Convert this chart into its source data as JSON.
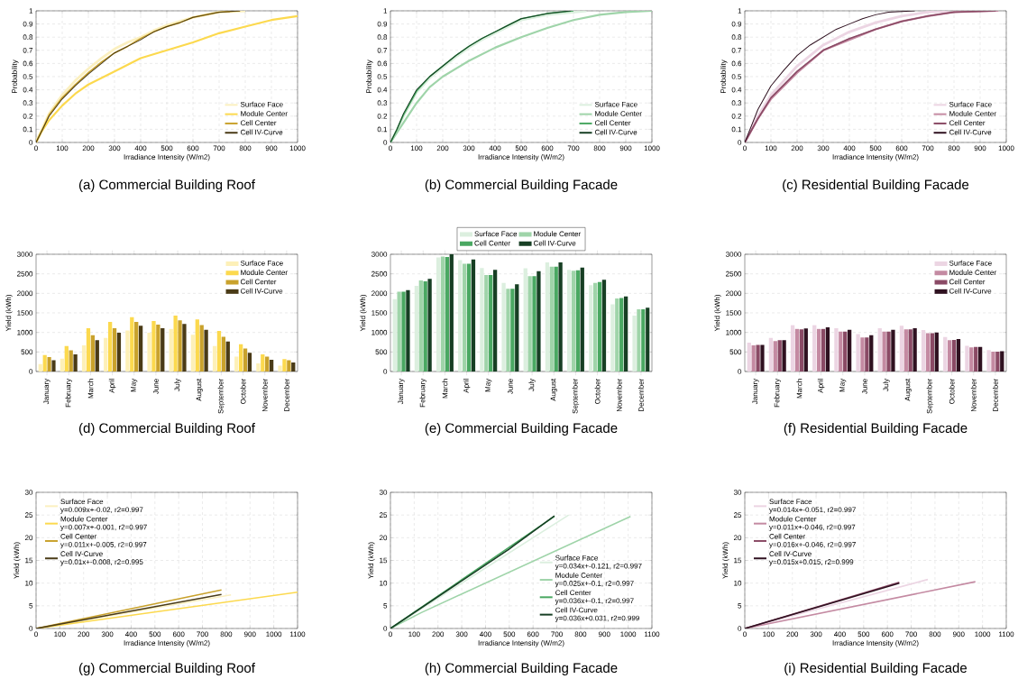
{
  "chart_data": [
    {
      "type": "line",
      "title": "(a) Commercial Building Roof",
      "xlabel": "Irradiance Intensity (W/m2)",
      "ylabel": "Probability",
      "xlim": [
        0,
        1000
      ],
      "ylim": [
        0,
        1
      ],
      "xticks": [
        0,
        100,
        200,
        300,
        400,
        500,
        600,
        700,
        800,
        900,
        1000
      ],
      "yticks": [
        0,
        0.1,
        0.2,
        0.3,
        0.4,
        0.5,
        0.6,
        0.7,
        0.8,
        0.9,
        1
      ],
      "grid": true,
      "legend": "bottom right",
      "series": [
        {
          "name": "Surface Face",
          "color": "#fbf0c0",
          "x": [
            0,
            20,
            50,
            100,
            150,
            200,
            250,
            300,
            350,
            400,
            450,
            500,
            550,
            600,
            650,
            700,
            800
          ],
          "values": [
            0,
            0.09,
            0.22,
            0.36,
            0.47,
            0.56,
            0.64,
            0.71,
            0.76,
            0.8,
            0.85,
            0.89,
            0.92,
            0.95,
            0.97,
            0.99,
            1
          ]
        },
        {
          "name": "Module Center",
          "color": "#fcd94e",
          "x": [
            0,
            20,
            50,
            100,
            150,
            200,
            300,
            400,
            500,
            600,
            700,
            800,
            900,
            1000
          ],
          "values": [
            0,
            0.08,
            0.17,
            0.28,
            0.37,
            0.44,
            0.54,
            0.64,
            0.7,
            0.76,
            0.83,
            0.88,
            0.93,
            0.96
          ]
        },
        {
          "name": "Cell Center",
          "color": "#c9a22c",
          "x": [
            0,
            20,
            50,
            100,
            150,
            200,
            250,
            300,
            350,
            400,
            450,
            500,
            550,
            600,
            650,
            700,
            780
          ],
          "values": [
            0,
            0.08,
            0.21,
            0.34,
            0.44,
            0.53,
            0.61,
            0.68,
            0.73,
            0.79,
            0.84,
            0.88,
            0.91,
            0.95,
            0.97,
            0.99,
            1
          ]
        },
        {
          "name": "Cell IV-Curve",
          "color": "#4a3b17",
          "x": [
            0,
            20,
            50,
            100,
            150,
            200,
            250,
            300,
            350,
            400,
            450,
            500,
            550,
            600,
            650,
            700,
            780
          ],
          "values": [
            0,
            0.08,
            0.2,
            0.33,
            0.43,
            0.52,
            0.6,
            0.68,
            0.73,
            0.78,
            0.84,
            0.88,
            0.91,
            0.95,
            0.97,
            0.99,
            1
          ]
        }
      ]
    },
    {
      "type": "line",
      "title": "(b) Commercial Building Facade",
      "xlabel": "Irradiance Intensity (W/m2)",
      "ylabel": "Probability",
      "xlim": [
        0,
        1000
      ],
      "ylim": [
        0,
        1
      ],
      "xticks": [
        0,
        100,
        200,
        300,
        400,
        500,
        600,
        700,
        800,
        900,
        1000
      ],
      "yticks": [
        0,
        0.1,
        0.2,
        0.3,
        0.4,
        0.5,
        0.6,
        0.7,
        0.8,
        0.9,
        1
      ],
      "grid": true,
      "legend": "bottom right",
      "series": [
        {
          "name": "Surface Face",
          "color": "#dcefdf",
          "x": [
            0,
            25,
            50,
            100,
            150,
            200,
            250,
            300,
            350,
            400,
            450,
            500,
            600,
            750
          ],
          "values": [
            0,
            0.09,
            0.2,
            0.38,
            0.49,
            0.57,
            0.65,
            0.72,
            0.78,
            0.83,
            0.88,
            0.93,
            0.97,
            1
          ]
        },
        {
          "name": "Module Center",
          "color": "#9fd4a9",
          "x": [
            0,
            50,
            100,
            150,
            200,
            300,
            400,
            500,
            600,
            700,
            800,
            900,
            1000
          ],
          "values": [
            0,
            0.15,
            0.3,
            0.42,
            0.5,
            0.62,
            0.72,
            0.8,
            0.87,
            0.93,
            0.97,
            0.99,
            1
          ]
        },
        {
          "name": "Cell Center",
          "color": "#4aa862",
          "x": [
            0,
            25,
            50,
            100,
            150,
            200,
            250,
            300,
            350,
            400,
            450,
            500,
            600,
            700
          ],
          "values": [
            0,
            0.1,
            0.21,
            0.39,
            0.5,
            0.58,
            0.66,
            0.73,
            0.79,
            0.84,
            0.89,
            0.94,
            0.98,
            1
          ]
        },
        {
          "name": "Cell IV-Curve",
          "color": "#173f24",
          "x": [
            0,
            25,
            50,
            100,
            150,
            200,
            250,
            300,
            350,
            400,
            450,
            500,
            600,
            690
          ],
          "values": [
            0,
            0.1,
            0.22,
            0.4,
            0.5,
            0.58,
            0.66,
            0.73,
            0.79,
            0.84,
            0.89,
            0.94,
            0.98,
            1
          ]
        }
      ]
    },
    {
      "type": "line",
      "title": "(c) Residential Building Facade",
      "xlabel": "Irradiance Intensity (W/m2)",
      "ylabel": "Probability",
      "xlim": [
        0,
        1000
      ],
      "ylim": [
        0,
        1
      ],
      "xticks": [
        0,
        100,
        200,
        300,
        400,
        500,
        600,
        700,
        800,
        900,
        1000
      ],
      "yticks": [
        0,
        0.1,
        0.2,
        0.3,
        0.4,
        0.5,
        0.6,
        0.7,
        0.8,
        0.9,
        1
      ],
      "grid": true,
      "legend": "bottom right",
      "series": [
        {
          "name": "Surface Face",
          "color": "#ecd5e3",
          "x": [
            0,
            50,
            100,
            200,
            300,
            400,
            500,
            600,
            700,
            780
          ],
          "values": [
            0,
            0.2,
            0.36,
            0.58,
            0.74,
            0.84,
            0.91,
            0.96,
            0.99,
            1
          ]
        },
        {
          "name": "Module Center",
          "color": "#c48aa2",
          "x": [
            0,
            50,
            100,
            200,
            300,
            400,
            500,
            600,
            700,
            800,
            970
          ],
          "values": [
            0,
            0.18,
            0.33,
            0.53,
            0.7,
            0.78,
            0.86,
            0.92,
            0.96,
            0.99,
            1
          ]
        },
        {
          "name": "Cell Center",
          "color": "#8a4a65",
          "x": [
            0,
            50,
            100,
            200,
            300,
            400,
            500,
            600,
            700,
            800,
            960
          ],
          "values": [
            0,
            0.18,
            0.34,
            0.54,
            0.7,
            0.79,
            0.86,
            0.92,
            0.96,
            0.99,
            1
          ]
        },
        {
          "name": "Cell IV-Curve",
          "color": "#2f1120",
          "x": [
            0,
            50,
            100,
            150,
            200,
            250,
            300,
            350,
            400,
            450,
            500,
            550,
            650
          ],
          "values": [
            0,
            0.25,
            0.43,
            0.55,
            0.66,
            0.74,
            0.8,
            0.86,
            0.9,
            0.94,
            0.97,
            0.99,
            1
          ]
        }
      ]
    },
    {
      "type": "bar",
      "title": "(d) Commercial Building Roof",
      "ylabel": "Yield (kWh)",
      "categories": [
        "January",
        "February",
        "March",
        "April",
        "May",
        "June",
        "July",
        "August",
        "September",
        "October",
        "November",
        "December"
      ],
      "ylim": [
        0,
        3000
      ],
      "yticks": [
        0,
        500,
        1000,
        1500,
        2000,
        2500,
        3000
      ],
      "grid": "y",
      "legend": "top right",
      "series": [
        {
          "name": "Surface Face",
          "color": "#fdf0b8",
          "values": [
            190,
            330,
            670,
            860,
            1050,
            990,
            1090,
            940,
            650,
            380,
            210,
            150
          ]
        },
        {
          "name": "Module Center",
          "color": "#fcd94e",
          "values": [
            420,
            650,
            1110,
            1270,
            1390,
            1290,
            1430,
            1330,
            1040,
            700,
            440,
            320
          ]
        },
        {
          "name": "Cell Center",
          "color": "#c9a22c",
          "values": [
            370,
            540,
            930,
            1110,
            1270,
            1200,
            1310,
            1190,
            890,
            590,
            380,
            290
          ]
        },
        {
          "name": "Cell IV-Curve",
          "color": "#4a3b17",
          "values": [
            290,
            440,
            800,
            990,
            1170,
            1110,
            1220,
            1070,
            770,
            480,
            300,
            230
          ]
        }
      ]
    },
    {
      "type": "bar",
      "title": "(e) Commercial Building Facade",
      "ylabel": "Yield (kWh)",
      "categories": [
        "January",
        "February",
        "March",
        "April",
        "May",
        "June",
        "July",
        "August",
        "September",
        "October",
        "November",
        "December"
      ],
      "ylim": [
        0,
        3000
      ],
      "yticks": [
        0,
        500,
        1000,
        1500,
        2000,
        2500,
        3000
      ],
      "grid": "y",
      "legend": "top",
      "series": [
        {
          "name": "Surface Face",
          "color": "#dcefdf",
          "values": [
            1850,
            2190,
            2920,
            2850,
            2650,
            2270,
            2640,
            2790,
            2600,
            2210,
            1720,
            1430
          ]
        },
        {
          "name": "Module Center",
          "color": "#9fd4a9",
          "values": [
            2040,
            2330,
            2940,
            2760,
            2470,
            2120,
            2440,
            2680,
            2580,
            2270,
            1870,
            1590
          ]
        },
        {
          "name": "Cell Center",
          "color": "#4aa862",
          "values": [
            2040,
            2310,
            2930,
            2760,
            2470,
            2120,
            2440,
            2680,
            2590,
            2290,
            1880,
            1590
          ]
        },
        {
          "name": "Cell IV-Curve",
          "color": "#173f24",
          "values": [
            2080,
            2370,
            3000,
            2870,
            2600,
            2230,
            2570,
            2790,
            2660,
            2350,
            1920,
            1630
          ]
        }
      ]
    },
    {
      "type": "bar",
      "title": "(f) Residential Building Facade",
      "ylabel": "Yield (kWh)",
      "categories": [
        "January",
        "February",
        "March",
        "April",
        "May",
        "June",
        "July",
        "August",
        "September",
        "October",
        "November",
        "December"
      ],
      "ylim": [
        0,
        3000
      ],
      "yticks": [
        0,
        500,
        1000,
        1500,
        2000,
        2500,
        3000
      ],
      "grid": "y",
      "legend": "top right",
      "series": [
        {
          "name": "Surface Face",
          "color": "#ecd5e3",
          "values": [
            740,
            860,
            1190,
            1190,
            1110,
            960,
            1110,
            1170,
            1060,
            880,
            660,
            550
          ]
        },
        {
          "name": "Module Center",
          "color": "#c48aa2",
          "values": [
            670,
            780,
            1090,
            1090,
            1020,
            870,
            1020,
            1080,
            980,
            800,
            620,
            510
          ]
        },
        {
          "name": "Cell Center",
          "color": "#8a4a65",
          "values": [
            680,
            800,
            1080,
            1090,
            1020,
            870,
            1020,
            1080,
            980,
            810,
            630,
            510
          ]
        },
        {
          "name": "Cell IV-Curve",
          "color": "#2f1120",
          "values": [
            680,
            800,
            1100,
            1130,
            1070,
            930,
            1070,
            1110,
            1000,
            830,
            630,
            520
          ]
        }
      ]
    },
    {
      "type": "line",
      "title": "(g) Commercial Building Roof",
      "xlabel": "Irradiance Intensity (W/m2)",
      "ylabel": "Yield (kWh)",
      "xlim": [
        0,
        1100
      ],
      "ylim": [
        0,
        30
      ],
      "xticks": [
        0,
        100,
        200,
        300,
        400,
        500,
        600,
        700,
        800,
        900,
        1000,
        1100
      ],
      "yticks": [
        0,
        5,
        10,
        15,
        20,
        25,
        30
      ],
      "grid": true,
      "legend": "top left",
      "annotations": [
        "y=0.009x+-0.02, r2=0.997",
        "y=0.007x+-0.001, r2=0.997",
        "y=0.011x+-0.005, r2=0.997",
        "y=0.01x+-0.008, r2=0.995"
      ],
      "series": [
        {
          "name": "Surface Face",
          "color": "#fbf0c0",
          "x": [
            0,
            820
          ],
          "values": [
            0,
            7.4
          ]
        },
        {
          "name": "Module Center",
          "color": "#fcd94e",
          "x": [
            0,
            1100
          ],
          "values": [
            0,
            8
          ]
        },
        {
          "name": "Cell Center",
          "color": "#c9a22c",
          "x": [
            0,
            780
          ],
          "values": [
            0,
            8.5
          ]
        },
        {
          "name": "Cell IV-Curve",
          "color": "#4a3b17",
          "x": [
            0,
            780
          ],
          "values": [
            0,
            7.5
          ]
        }
      ]
    },
    {
      "type": "line",
      "title": "(h) Commercial Building Facade",
      "xlabel": "Irradiance Intensity (W/m2)",
      "ylabel": "Yield (kWh)",
      "xlim": [
        0,
        1100
      ],
      "ylim": [
        0,
        30
      ],
      "xticks": [
        0,
        100,
        200,
        300,
        400,
        500,
        600,
        700,
        800,
        900,
        1000,
        1100
      ],
      "yticks": [
        0,
        5,
        10,
        15,
        20,
        25,
        30
      ],
      "grid": true,
      "legend": "bottom right",
      "annotations": [
        "y=0.034x+-0.121, r2=0.997",
        "y=0.025x+-0.1, r2=0.997",
        "y=0.036x+-0.1, r2=0.997",
        "y=0.036x+0.031, r2=0.999"
      ],
      "series": [
        {
          "name": "Surface Face",
          "color": "#dcefdf",
          "x": [
            0,
            750
          ],
          "values": [
            0,
            25
          ]
        },
        {
          "name": "Module Center",
          "color": "#9fd4a9",
          "x": [
            0,
            130,
            1010
          ],
          "values": [
            0,
            3.5,
            24.7
          ]
        },
        {
          "name": "Cell Center",
          "color": "#4aa862",
          "x": [
            0,
            690
          ],
          "values": [
            0,
            24.7
          ]
        },
        {
          "name": "Cell IV-Curve",
          "color": "#173f24",
          "x": [
            0,
            500,
            520,
            690
          ],
          "values": [
            0,
            17.5,
            18.3,
            24.8
          ]
        }
      ]
    },
    {
      "type": "line",
      "title": "(i) Residential Building Facade",
      "xlabel": "Irradiance Intensity (W/m2)",
      "ylabel": "Yield (kWh)",
      "xlim": [
        0,
        1100
      ],
      "ylim": [
        0,
        30
      ],
      "xticks": [
        0,
        100,
        200,
        300,
        400,
        500,
        600,
        700,
        800,
        900,
        1000,
        1100
      ],
      "yticks": [
        0,
        5,
        10,
        15,
        20,
        25,
        30
      ],
      "grid": true,
      "legend": "top left",
      "annotations": [
        "y=0.014x+-0.051, r2=0.997",
        "y=0.011x+-0.046, r2=0.997",
        "y=0.016x+-0.046, r2=0.997",
        "y=0.015x+0.015, r2=0.999"
      ],
      "series": [
        {
          "name": "Surface Face",
          "color": "#ecd5e3",
          "x": [
            0,
            770
          ],
          "values": [
            0,
            10.8
          ]
        },
        {
          "name": "Module Center",
          "color": "#c48aa2",
          "x": [
            0,
            970
          ],
          "values": [
            0,
            10.3
          ]
        },
        {
          "name": "Cell Center",
          "color": "#8a4a65",
          "x": [
            0,
            650
          ],
          "values": [
            0,
            10.2
          ]
        },
        {
          "name": "Cell IV-Curve",
          "color": "#2f1120",
          "x": [
            0,
            650
          ],
          "values": [
            0,
            10
          ]
        }
      ]
    }
  ]
}
